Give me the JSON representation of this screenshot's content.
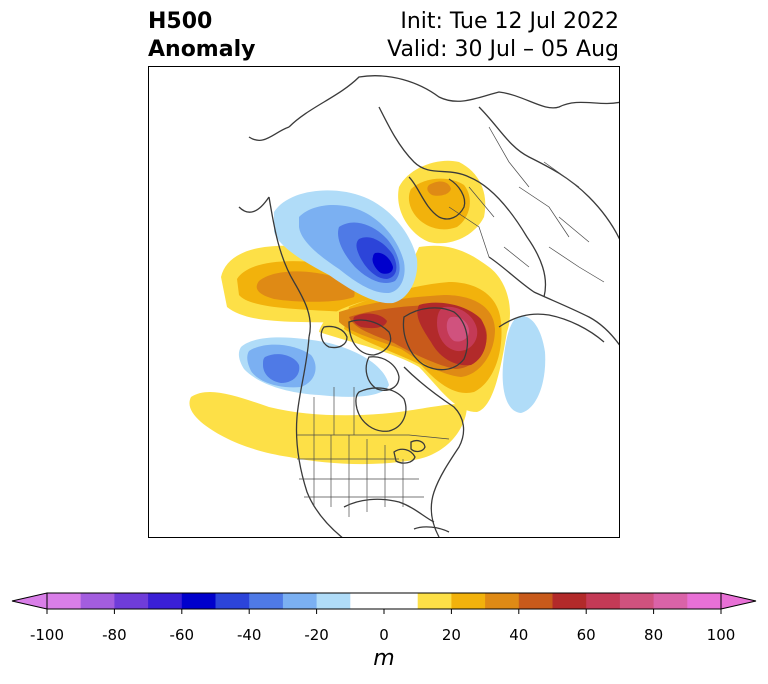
{
  "title": {
    "variable_line1": "H500",
    "variable_line2": "Anomaly",
    "init_line": "Init: Tue 12 Jul 2022",
    "valid_line": "Valid: 30 Jul – 05 Aug"
  },
  "colorbar": {
    "unit": "m",
    "range": [
      -100,
      100
    ],
    "step": 10,
    "tick_labels": [
      "-100",
      "-80",
      "-60",
      "-40",
      "-20",
      "0",
      "20",
      "40",
      "60",
      "80",
      "100"
    ],
    "colors": [
      "#d97ee8",
      "#a35ddf",
      "#6f3cd9",
      "#3a1fd6",
      "#0000cc",
      "#2c44d9",
      "#4f7ae6",
      "#7bb0f2",
      "#b0dcf8",
      "#ffffff",
      "#ffffff",
      "#fde047",
      "#f2b20c",
      "#df8a15",
      "#c85a1b",
      "#b22a2a",
      "#c43a56",
      "#d0527e",
      "#da63a8",
      "#e870d6"
    ]
  },
  "map": {
    "projection": "north-polar-stereographic",
    "region": "North America / Arctic",
    "anomalies": [
      {
        "name": "ridge-north-pacific-alaska",
        "value": 40
      },
      {
        "name": "trough-arctic-ocean",
        "value": -60
      },
      {
        "name": "ridge-greenland-canadian-arctic",
        "value": 80
      },
      {
        "name": "ridge-scandinavia-siberia",
        "value": 20
      },
      {
        "name": "trough-gulf-of-alaska",
        "value": -40
      },
      {
        "name": "ridge-northern-us",
        "value": 20
      },
      {
        "name": "trough-north-atlantic",
        "value": -20
      }
    ]
  }
}
